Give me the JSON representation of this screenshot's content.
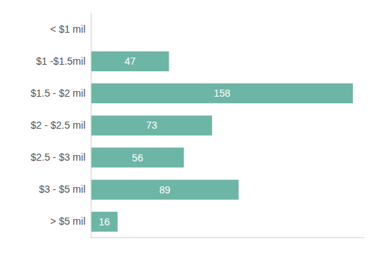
{
  "chart_data": {
    "type": "bar",
    "orientation": "horizontal",
    "categories": [
      "< $1 mil",
      "$1 -$1.5mil",
      "$1.5 - $2 mil",
      "$2 - $2.5 mil",
      "$2.5 - $3 mil",
      "$3 - $5 mil",
      "> $5 mil"
    ],
    "values": [
      0,
      47,
      158,
      73,
      56,
      89,
      16
    ],
    "value_labels": [
      null,
      "47",
      "158",
      "73",
      "56",
      "89",
      "16"
    ],
    "color": "#6db5a5",
    "xlim": [
      0,
      165
    ],
    "data_labels": true,
    "tick_labels": "y",
    "grid": false
  }
}
